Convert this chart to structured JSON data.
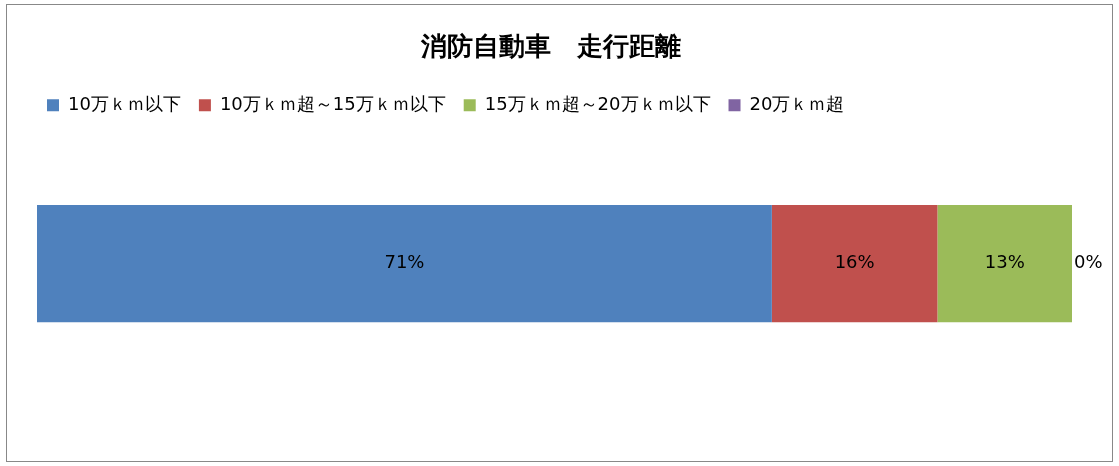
{
  "chart_data": {
    "type": "bar",
    "title": "消防自動車　走行距離",
    "orientation": "horizontal",
    "stacked": true,
    "categories": [
      null
    ],
    "xlim": [
      0,
      100
    ],
    "tick_labels": false,
    "grid": false,
    "legend": "top",
    "series": [
      {
        "name": "10万ｋｍ以下",
        "color": "#4f81bd",
        "values": [
          71
        ],
        "value_labels": [
          "71%"
        ]
      },
      {
        "name": "10万ｋｍ超～15万ｋｍ以下",
        "color": "#c0504d",
        "values": [
          16
        ],
        "value_labels": [
          "16%"
        ]
      },
      {
        "name": "15万ｋｍ超～20万ｋｍ以下",
        "color": "#9bbb59",
        "values": [
          13
        ],
        "value_labels": [
          "13%"
        ]
      },
      {
        "name": "20万ｋｍ超",
        "color": "#8064a2",
        "values": [
          0
        ],
        "value_labels": [
          "0%"
        ]
      }
    ]
  }
}
